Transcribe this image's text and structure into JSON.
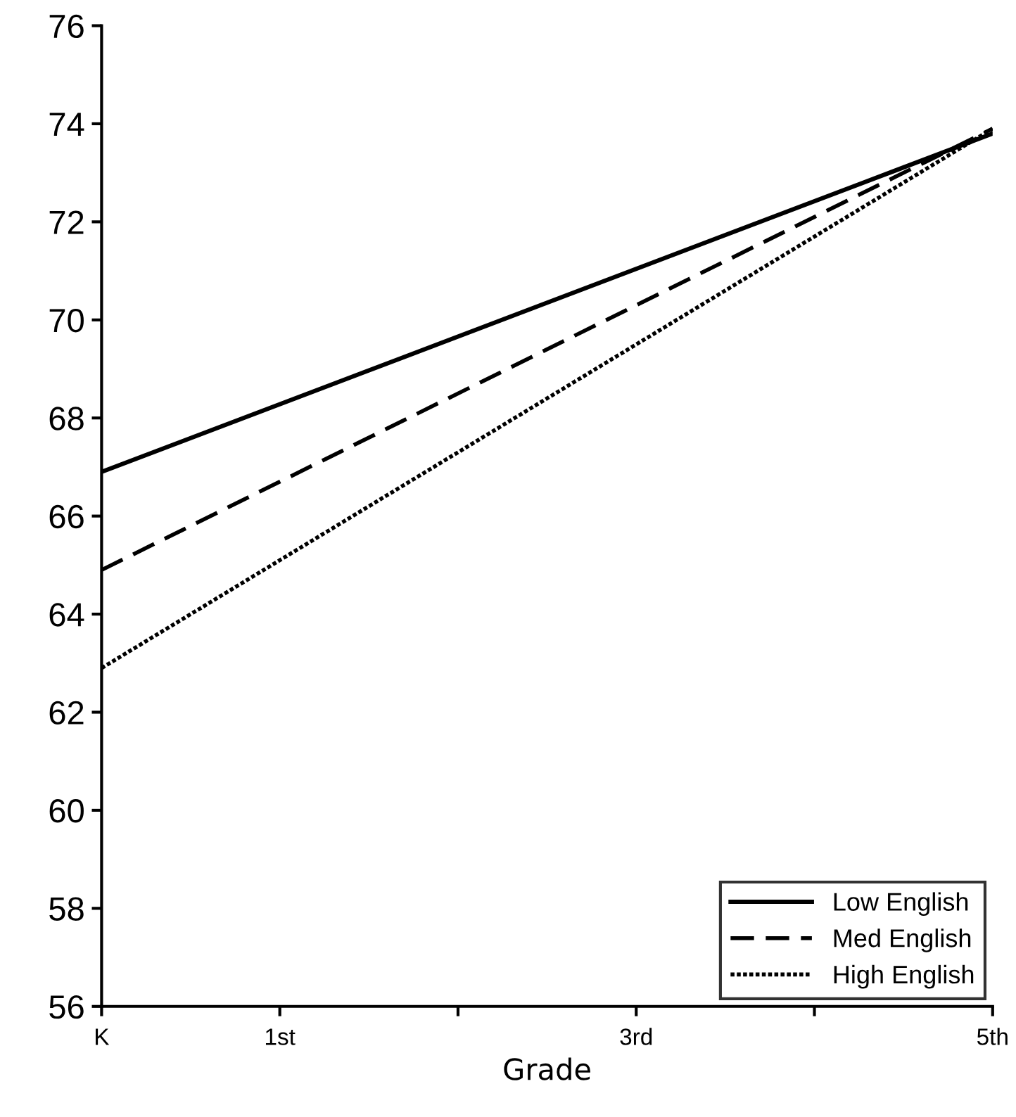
{
  "chart_data": {
    "type": "line",
    "xlabel": "Grade",
    "x": [
      0,
      5
    ],
    "series": [
      {
        "name": "Low English",
        "color": "#000000",
        "line_style": "solid",
        "values": [
          66.9,
          73.8
        ]
      },
      {
        "name": "Med English",
        "color": "#000000",
        "line_style": "dashed",
        "values": [
          64.9,
          73.9
        ]
      },
      {
        "name": "High English",
        "color": "#000000",
        "line_style": "dotted",
        "values": [
          62.9,
          73.9
        ]
      }
    ],
    "xlim": [
      0,
      5
    ],
    "xticks": [
      {
        "value": 0,
        "label": "K"
      },
      {
        "value": 1,
        "label": "1st"
      },
      {
        "value": 2,
        "label": null
      },
      {
        "value": 3,
        "label": "3rd"
      },
      {
        "value": 4,
        "label": null
      },
      {
        "value": 5,
        "label": "5th"
      }
    ],
    "ylim": [
      56,
      76
    ],
    "yticks": [
      56,
      58,
      60,
      62,
      64,
      66,
      68,
      70,
      72,
      74,
      76
    ],
    "grid": false,
    "legend": "bottom right",
    "marker": "none"
  }
}
